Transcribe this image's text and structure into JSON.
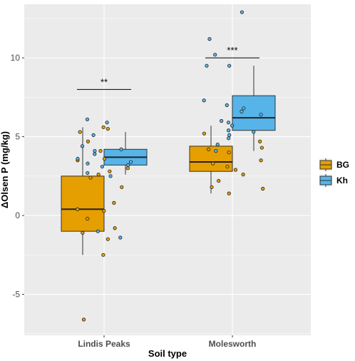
{
  "chart_data": {
    "type": "box",
    "xlabel": "Soil type",
    "ylabel": "ΔOlsen P (mg/kg)",
    "categories": [
      "Lindis Peaks",
      "Molesworth"
    ],
    "ylim": [
      -7.6,
      13.4
    ],
    "yticks": [
      -5,
      0,
      5,
      10
    ],
    "ytick_labels": [
      "-5",
      "0",
      "5",
      "10"
    ],
    "grid": true,
    "legend_position": "right",
    "series": [
      {
        "name": "BG",
        "color": "#E69F00",
        "boxes": [
          {
            "category": "Lindis Peaks",
            "whisker_low": -2.5,
            "q1": -1.0,
            "median": 0.4,
            "q3": 2.5,
            "whisker_high": 5.6
          },
          {
            "category": "Molesworth",
            "whisker_low": 1.4,
            "q1": 2.8,
            "median": 3.4,
            "q3": 4.4,
            "whisker_high": 5.7
          }
        ],
        "points": [
          {
            "category": "Lindis Peaks",
            "values": [
              5.6,
              5.5,
              5.3,
              4.7,
              4.1,
              3.6,
              3.5,
              3.0,
              2.8,
              2.6,
              2.4,
              1.8,
              0.8,
              0.4,
              0.3,
              -0.2,
              -0.8,
              -1.1,
              -1.5,
              -2.5,
              -6.6
            ]
          },
          {
            "category": "Molesworth",
            "values": [
              5.2,
              4.7,
              4.3,
              4.2,
              4.0,
              3.5,
              3.3,
              3.1,
              2.9,
              2.6,
              2.2,
              1.8,
              1.7,
              1.4
            ]
          }
        ]
      },
      {
        "name": "Kh",
        "color": "#56B4E9",
        "boxes": [
          {
            "category": "Lindis Peaks",
            "whisker_low": 2.6,
            "q1": 3.2,
            "median": 3.7,
            "q3": 4.2,
            "whisker_high": 5.3
          },
          {
            "category": "Molesworth",
            "whisker_low": 4.1,
            "q1": 5.4,
            "median": 6.2,
            "q3": 7.6,
            "whisker_high": 9.5
          }
        ],
        "points": [
          {
            "category": "Lindis Peaks",
            "values": [
              6.1,
              5.9,
              5.1,
              4.4,
              4.2,
              4.1,
              3.9,
              3.6,
              3.4,
              3.3,
              3.2,
              3.1,
              2.7,
              2.5,
              -1.0,
              -1.4
            ]
          },
          {
            "category": "Molesworth",
            "values": [
              12.9,
              11.2,
              10.2,
              9.5,
              9.5,
              7.3,
              7.0,
              6.8,
              6.6,
              6.4,
              6.0,
              5.9,
              5.7,
              5.4,
              5.3,
              5.1,
              4.9,
              4.5,
              4.1
            ]
          }
        ]
      }
    ],
    "annotations": [
      {
        "category": "Lindis Peaks",
        "text": "**",
        "y": 8.0
      },
      {
        "category": "Molesworth",
        "text": "***",
        "y": 10.0
      }
    ]
  }
}
